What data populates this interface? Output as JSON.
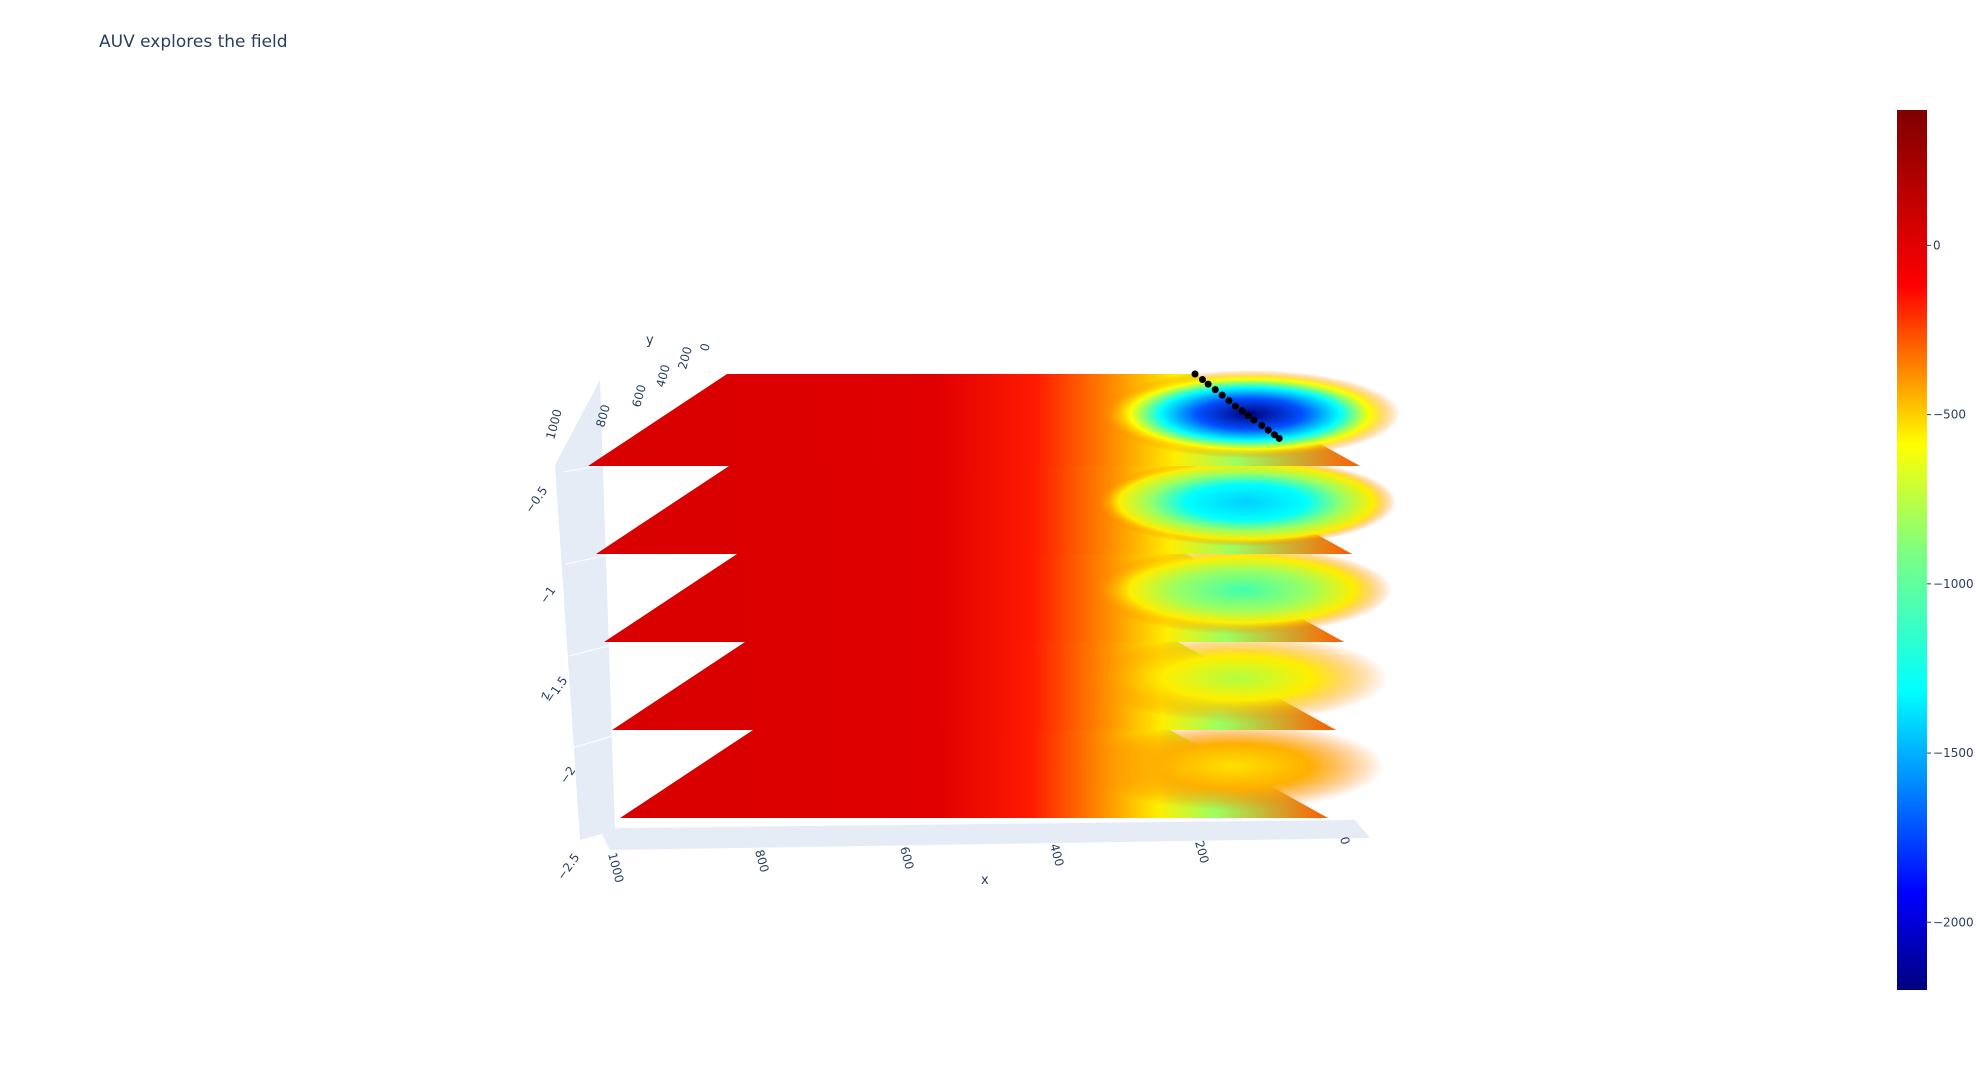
{
  "chart_data": {
    "type": "surface",
    "title": "AUV explores the field",
    "colorscale": "jet",
    "axes": {
      "x": {
        "label": "x",
        "range": [
          0,
          1000
        ],
        "ticks": [
          "0",
          "200",
          "400",
          "600",
          "800",
          "1000"
        ]
      },
      "y": {
        "label": "y",
        "range": [
          0,
          1000
        ],
        "ticks": [
          "0",
          "200",
          "400",
          "600",
          "800",
          "1000"
        ]
      },
      "z": {
        "label": "z",
        "range": [
          -2.5,
          -0.5
        ],
        "ticks": [
          "−2.5",
          "−2",
          "−1.5",
          "−1",
          "−0.5"
        ]
      }
    },
    "colorbar": {
      "range": [
        -2200,
        400
      ],
      "ticks": [
        "0",
        "−500",
        "−1000",
        "−1500",
        "−2000"
      ],
      "tick_values": [
        0,
        -500,
        -1000,
        -1500,
        -2000
      ]
    },
    "surfaces": [
      {
        "z": -0.5,
        "min_value": -2200
      },
      {
        "z": -1.0,
        "min_value": -1500
      },
      {
        "z": -1.5,
        "min_value": -1000
      },
      {
        "z": -2.0,
        "min_value": -800
      },
      {
        "z": -2.5,
        "min_value": -600
      }
    ],
    "auv_path": {
      "color": "#000000",
      "points": [
        {
          "x": 0,
          "y": 0,
          "z": -0.5
        },
        {
          "x": 5,
          "y": 60,
          "z": -0.5
        },
        {
          "x": 10,
          "y": 110,
          "z": -0.5
        },
        {
          "x": 15,
          "y": 170,
          "z": -0.5
        },
        {
          "x": 20,
          "y": 230,
          "z": -0.5
        },
        {
          "x": 25,
          "y": 290,
          "z": -0.5
        },
        {
          "x": 30,
          "y": 350,
          "z": -0.5
        },
        {
          "x": 32,
          "y": 400,
          "z": -0.5
        },
        {
          "x": 35,
          "y": 450,
          "z": -0.5
        },
        {
          "x": 38,
          "y": 500,
          "z": -0.5
        },
        {
          "x": 40,
          "y": 560,
          "z": -0.5
        },
        {
          "x": 42,
          "y": 610,
          "z": -0.5
        },
        {
          "x": 44,
          "y": 660,
          "z": -0.5
        },
        {
          "x": 46,
          "y": 700,
          "z": -0.5
        }
      ]
    }
  }
}
